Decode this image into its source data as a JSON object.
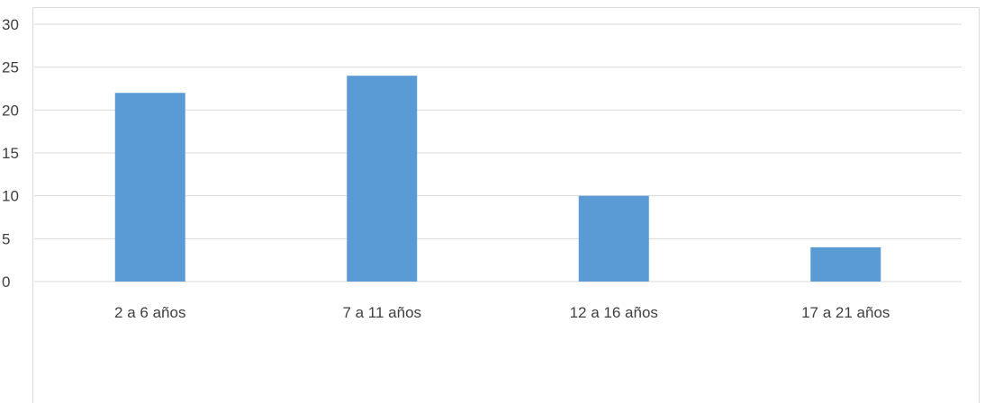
{
  "chart_data": {
    "type": "bar",
    "categories": [
      "2 a 6 años",
      "7 a 11 años",
      "12 a 16 años",
      "17 a 21 años"
    ],
    "values": [
      22,
      24,
      10,
      4
    ],
    "ylim": [
      0,
      30
    ],
    "yticks": [
      0,
      5,
      10,
      15,
      20,
      25,
      30
    ],
    "ytick_labels": [
      "0",
      "5",
      "10",
      "15",
      "20",
      "25",
      "30"
    ],
    "grid": true,
    "legend": "none",
    "colors": {
      "bar": "#5b9bd5",
      "grid": "#d9d9d9",
      "text": "#404040"
    }
  }
}
